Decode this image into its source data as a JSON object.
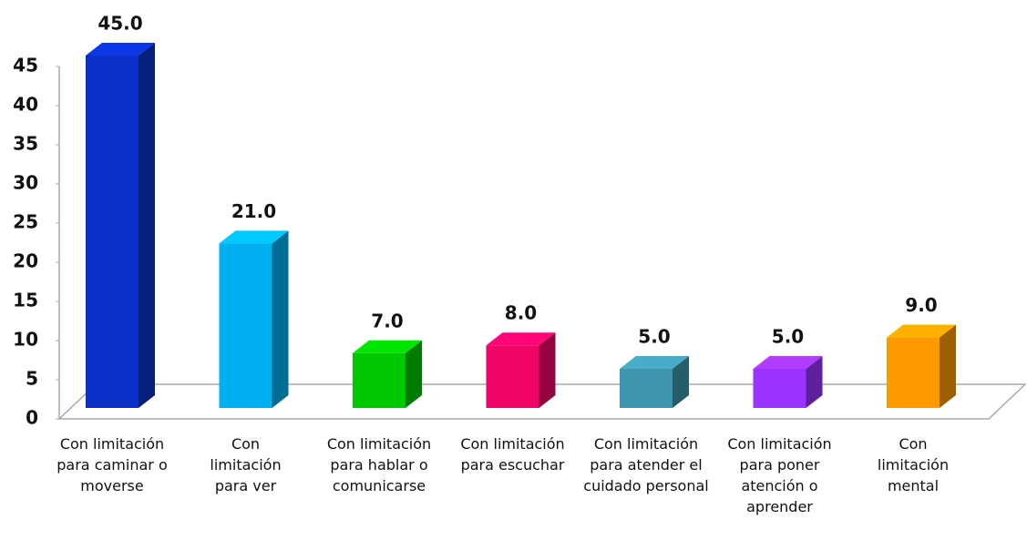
{
  "chart_data": {
    "type": "bar",
    "categories": [
      "Con limitación para caminar o moverse",
      "Con limitación para ver",
      "Con limitación para hablar o comunicarse",
      "Con limitación para escuchar",
      "Con limitación para atender el cuidado personal",
      "Con limitación para poner atención o aprender",
      "Con limitación mental"
    ],
    "values": [
      45,
      21,
      7,
      8,
      5,
      5,
      9
    ],
    "value_labels": [
      "45.0",
      "21.0",
      "7.0",
      "8.0",
      "5.0",
      "5.0",
      "9.0"
    ],
    "colors": [
      "#0a30c8",
      "#00b0f0",
      "#00c800",
      "#f00468",
      "#3e96ae",
      "#9a33ff",
      "#ff9900"
    ],
    "ylim": [
      0,
      45
    ],
    "yticks": [
      0,
      5,
      10,
      15,
      20,
      25,
      30,
      35,
      40,
      45
    ]
  }
}
